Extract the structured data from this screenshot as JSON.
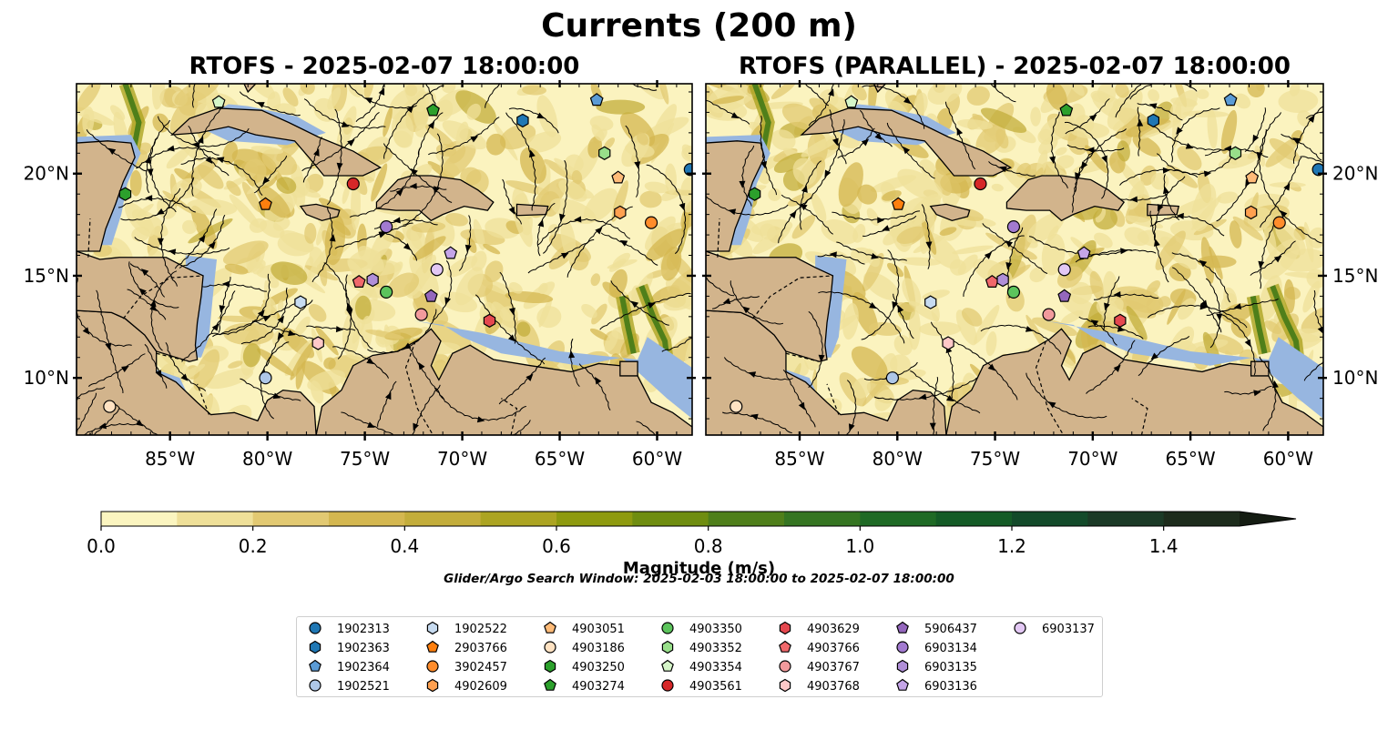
{
  "title": "Currents (200 m)",
  "panels": [
    {
      "title": "RTOFS - 2025-02-07 18:00:00"
    },
    {
      "title": "RTOFS (PARALLEL) - 2025-02-07 18:00:00"
    }
  ],
  "subtitle": "Glider/Argo Search Window: 2025-02-03 18:00:00 to 2025-02-07 18:00:00",
  "chart_data": {
    "type": "heatmap",
    "variable": "current magnitude with streamlines",
    "extent": {
      "lon": [
        -89.8,
        -58.2
      ],
      "lat": [
        7.2,
        24.4
      ]
    },
    "x_ticks": [
      -85,
      -80,
      -75,
      -70,
      -65,
      -60
    ],
    "x_tick_labels": [
      "85°W",
      "80°W",
      "75°W",
      "70°W",
      "65°W",
      "60°W"
    ],
    "y_ticks": [
      10,
      15,
      20
    ],
    "y_tick_labels": [
      "10°N",
      "15°N",
      "20°N"
    ],
    "colorbar": {
      "label": "Magnitude (m/s)",
      "range": [
        0,
        1.5
      ],
      "extend": "max",
      "ticks": [
        0.0,
        0.2,
        0.4,
        0.6,
        0.8,
        1.0,
        1.2,
        1.4
      ],
      "tick_labels": [
        "0.0",
        "0.2",
        "0.4",
        "0.6",
        "0.8",
        "1.0",
        "1.2",
        "1.4"
      ],
      "colors": [
        "#fbf5c0",
        "#efe099",
        "#e2c972",
        "#d4b750",
        "#c3ad3b",
        "#aca422",
        "#8e9a0f",
        "#6f8d10",
        "#4f7f1a",
        "#357522",
        "#1f6a25",
        "#145b26",
        "#134a2a",
        "#1b3a26",
        "#1d2c1c"
      ]
    },
    "legend_location": "lower-center",
    "markers": [
      {
        "name": "1902313",
        "shape": "circle",
        "color": "#1f77b4",
        "lon": -58.3,
        "lat": 20.2
      },
      {
        "name": "1902363",
        "shape": "hexagon",
        "color": "#1f77b4",
        "lon": -66.9,
        "lat": 22.6
      },
      {
        "name": "1902364",
        "shape": "pentagon",
        "color": "#5b9bd5",
        "lon": -63.1,
        "lat": 23.6
      },
      {
        "name": "1902521",
        "shape": "circle",
        "color": "#aec7e8",
        "lon": -80.1,
        "lat": 10.0
      },
      {
        "name": "1902522",
        "shape": "hexagon",
        "color": "#c7dbf0",
        "lon": -78.3,
        "lat": 13.7
      },
      {
        "name": "2903766",
        "shape": "pentagon",
        "color": "#ff7f0e",
        "lon": -80.1,
        "lat": 18.5
      },
      {
        "name": "3902457",
        "shape": "circle",
        "color": "#ff8c2b",
        "lon": -60.3,
        "lat": 17.6
      },
      {
        "name": "4902609",
        "shape": "hexagon",
        "color": "#ffa050",
        "lon": -61.9,
        "lat": 18.1
      },
      {
        "name": "4903051",
        "shape": "pentagon",
        "color": "#ffbb78",
        "lon": -62.0,
        "lat": 19.8
      },
      {
        "name": "4903186",
        "shape": "circle",
        "color": "#ffe2c2",
        "lon": -88.1,
        "lat": 8.6
      },
      {
        "name": "4903250",
        "shape": "hexagon",
        "color": "#2ca02c",
        "lon": -87.3,
        "lat": 19.0
      },
      {
        "name": "4903274",
        "shape": "pentagon",
        "color": "#2ca02c",
        "lon": -71.5,
        "lat": 23.1
      },
      {
        "name": "4903350",
        "shape": "circle",
        "color": "#5cc45c",
        "lon": -73.9,
        "lat": 14.2
      },
      {
        "name": "4903352",
        "shape": "hexagon",
        "color": "#98df8a",
        "lon": -62.7,
        "lat": 21.0
      },
      {
        "name": "4903354",
        "shape": "pentagon",
        "color": "#d5f5c8",
        "lon": -82.5,
        "lat": 23.5
      },
      {
        "name": "4903561",
        "shape": "circle",
        "color": "#d62728",
        "lon": -75.6,
        "lat": 19.5
      },
      {
        "name": "4903629",
        "shape": "hexagon",
        "color": "#e5484f",
        "lon": -68.6,
        "lat": 12.8
      },
      {
        "name": "4903766",
        "shape": "pentagon",
        "color": "#f0686b",
        "lon": -75.3,
        "lat": 14.7
      },
      {
        "name": "4903767",
        "shape": "circle",
        "color": "#f29a9c",
        "lon": -72.1,
        "lat": 13.1
      },
      {
        "name": "4903768",
        "shape": "hexagon",
        "color": "#ffc8c8",
        "lon": -77.4,
        "lat": 11.7
      },
      {
        "name": "5906437",
        "shape": "pentagon",
        "color": "#9467bd",
        "lon": -71.6,
        "lat": 14.0
      },
      {
        "name": "6903134",
        "shape": "circle",
        "color": "#a27ad0",
        "lon": -73.9,
        "lat": 17.4
      },
      {
        "name": "6903135",
        "shape": "hexagon",
        "color": "#b08fd8",
        "lon": -74.6,
        "lat": 14.8
      },
      {
        "name": "6903136",
        "shape": "pentagon",
        "color": "#c5a5e8",
        "lon": -70.6,
        "lat": 16.1
      },
      {
        "name": "6903137",
        "shape": "circle",
        "color": "#e3c8f4",
        "lon": -71.3,
        "lat": 15.3
      }
    ]
  }
}
